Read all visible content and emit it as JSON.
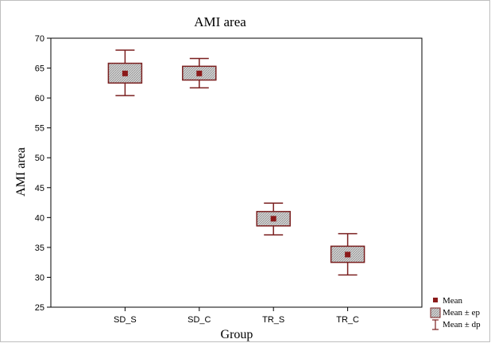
{
  "chart_data": {
    "type": "box",
    "title": "AMI area",
    "xlabel": "Group",
    "ylabel": "AMI area",
    "ylim": [
      25,
      70
    ],
    "yticks": [
      25,
      30,
      35,
      40,
      45,
      50,
      55,
      60,
      65,
      70
    ],
    "categories": [
      "SD_S",
      "SD_C",
      "TR_S",
      "TR_C"
    ],
    "mean": [
      64.1,
      64.1,
      39.8,
      33.8
    ],
    "ep_low": [
      62.5,
      63.0,
      38.6,
      32.5
    ],
    "ep_high": [
      65.8,
      65.3,
      41.0,
      35.2
    ],
    "dp_low": [
      60.4,
      61.7,
      37.1,
      30.4
    ],
    "dp_high": [
      68.0,
      66.6,
      42.4,
      37.3
    ],
    "legend": {
      "placement": "bottom-right",
      "items": [
        {
          "label": "Mean",
          "marker": "mean-square"
        },
        {
          "label": "Mean ± ep",
          "marker": "ep-box"
        },
        {
          "label": "Mean ± dp",
          "marker": "dp-whisker"
        }
      ]
    },
    "colors": {
      "outline": "#7a1f1f",
      "mean_marker": "#8b1a1a",
      "box_fill": "#c8c8c8",
      "axis": "#000000"
    }
  }
}
